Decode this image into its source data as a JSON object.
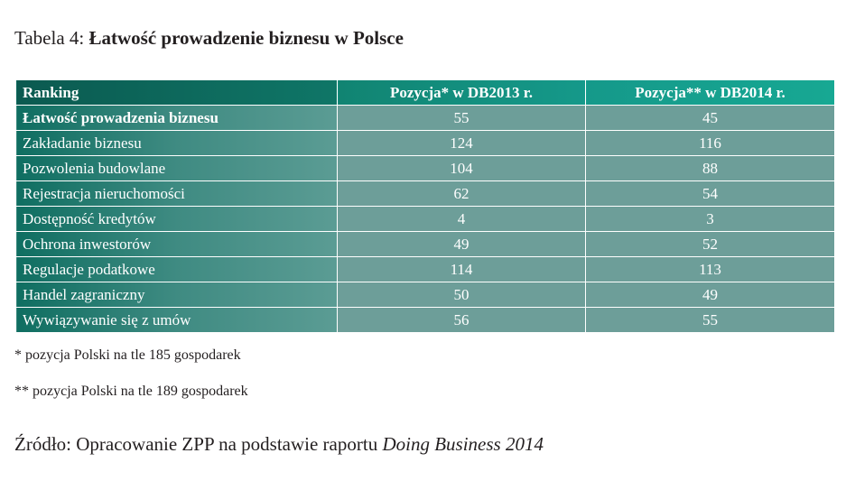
{
  "title": {
    "prefix": "Tabela 4: ",
    "main": "Łatwość prowadzenie biznesu w Polsce"
  },
  "table": {
    "headers": [
      "Ranking",
      "Pozycja* w DB2013 r.",
      "Pozycja** w DB2014 r."
    ],
    "rows": [
      {
        "label": "Łatwość prowadzenia biznesu",
        "db2013": "55",
        "db2014": "45"
      },
      {
        "label": "Zakładanie biznesu",
        "db2013": "124",
        "db2014": "116"
      },
      {
        "label": "Pozwolenia budowlane",
        "db2013": "104",
        "db2014": "88"
      },
      {
        "label": "Rejestracja nieruchomości",
        "db2013": "62",
        "db2014": "54"
      },
      {
        "label": "Dostępność kredytów",
        "db2013": "4",
        "db2014": "3"
      },
      {
        "label": "Ochrona inwestorów",
        "db2013": "49",
        "db2014": "52"
      },
      {
        "label": "Regulacje podatkowe",
        "db2013": "114",
        "db2014": "113"
      },
      {
        "label": "Handel zagraniczny",
        "db2013": "50",
        "db2014": "49"
      },
      {
        "label": "Wywiązywanie się z umów",
        "db2013": "56",
        "db2014": "55"
      }
    ]
  },
  "notes": [
    "* pozycja Polski na tle 185 gospodarek",
    "** pozycja Polski na tle 189 gospodarek"
  ],
  "source": {
    "prefix": "Źródło: Opracowanie ZPP na podstawie raportu ",
    "italic": "Doing Business 2014"
  },
  "colors": {
    "header_dark": "#0b5a50",
    "header_light": "#17a893",
    "row_label_dark": "#0f6e61",
    "row_value": "#6d9e99"
  }
}
